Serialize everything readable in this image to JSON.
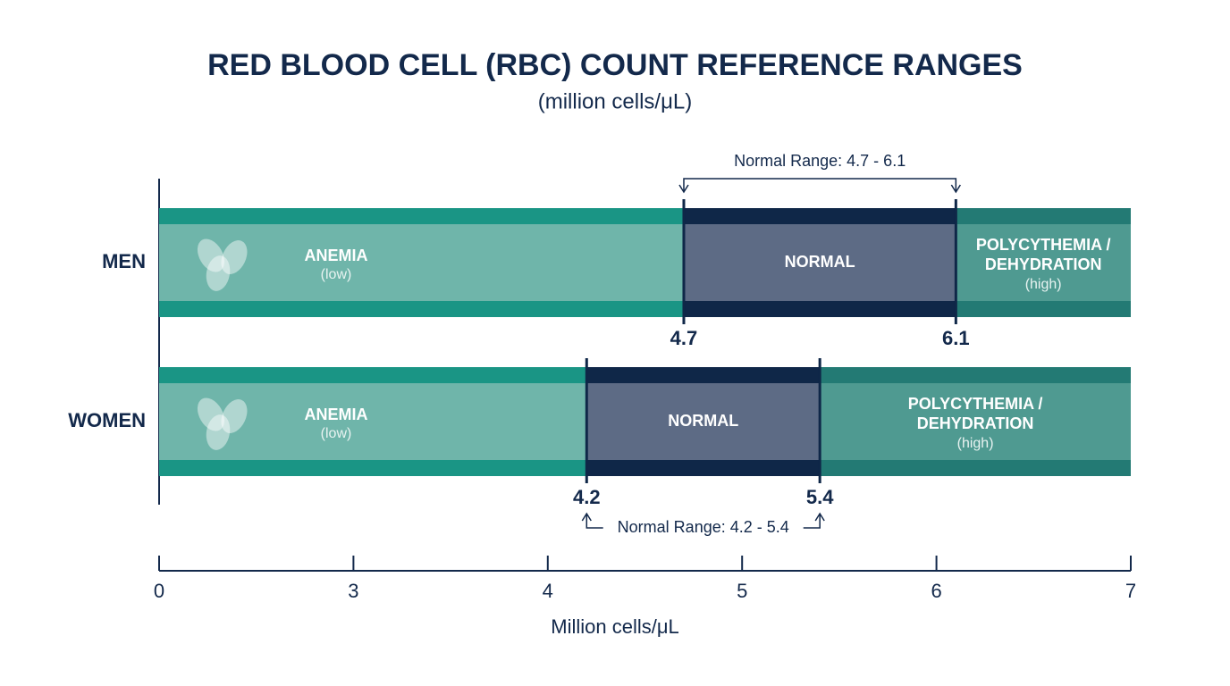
{
  "chart_data": {
    "type": "range",
    "title": "RED BLOOD CELL (RBC) COUNT REFERENCE RANGES",
    "subtitle": "(million cells/μL)",
    "xlabel": "Million cells/μL",
    "xlim": [
      0,
      7
    ],
    "xticks": [
      0,
      3,
      4,
      5,
      6,
      7
    ],
    "zones": {
      "low": {
        "name": "ANEMIA",
        "note": "(low)",
        "color": "#1a9585",
        "inner_color": "#6fb5aa"
      },
      "normal": {
        "name": "NORMAL",
        "color": "#0f2748",
        "inner_color": "#5d6b85"
      },
      "high": {
        "name": [
          "POLYCYTHEMIA /",
          "DEHYDRATION"
        ],
        "note": "(high)",
        "color": "#237a74",
        "inner_color": "#4f9a91"
      }
    },
    "rows": [
      {
        "name": "MEN",
        "normal": [
          4.7,
          6.1
        ],
        "range_label": "Normal Range: 4.7 - 6.1"
      },
      {
        "name": "WOMEN",
        "normal": [
          4.2,
          5.4
        ],
        "range_label": "Normal Range: 4.2 - 5.4"
      }
    ]
  }
}
